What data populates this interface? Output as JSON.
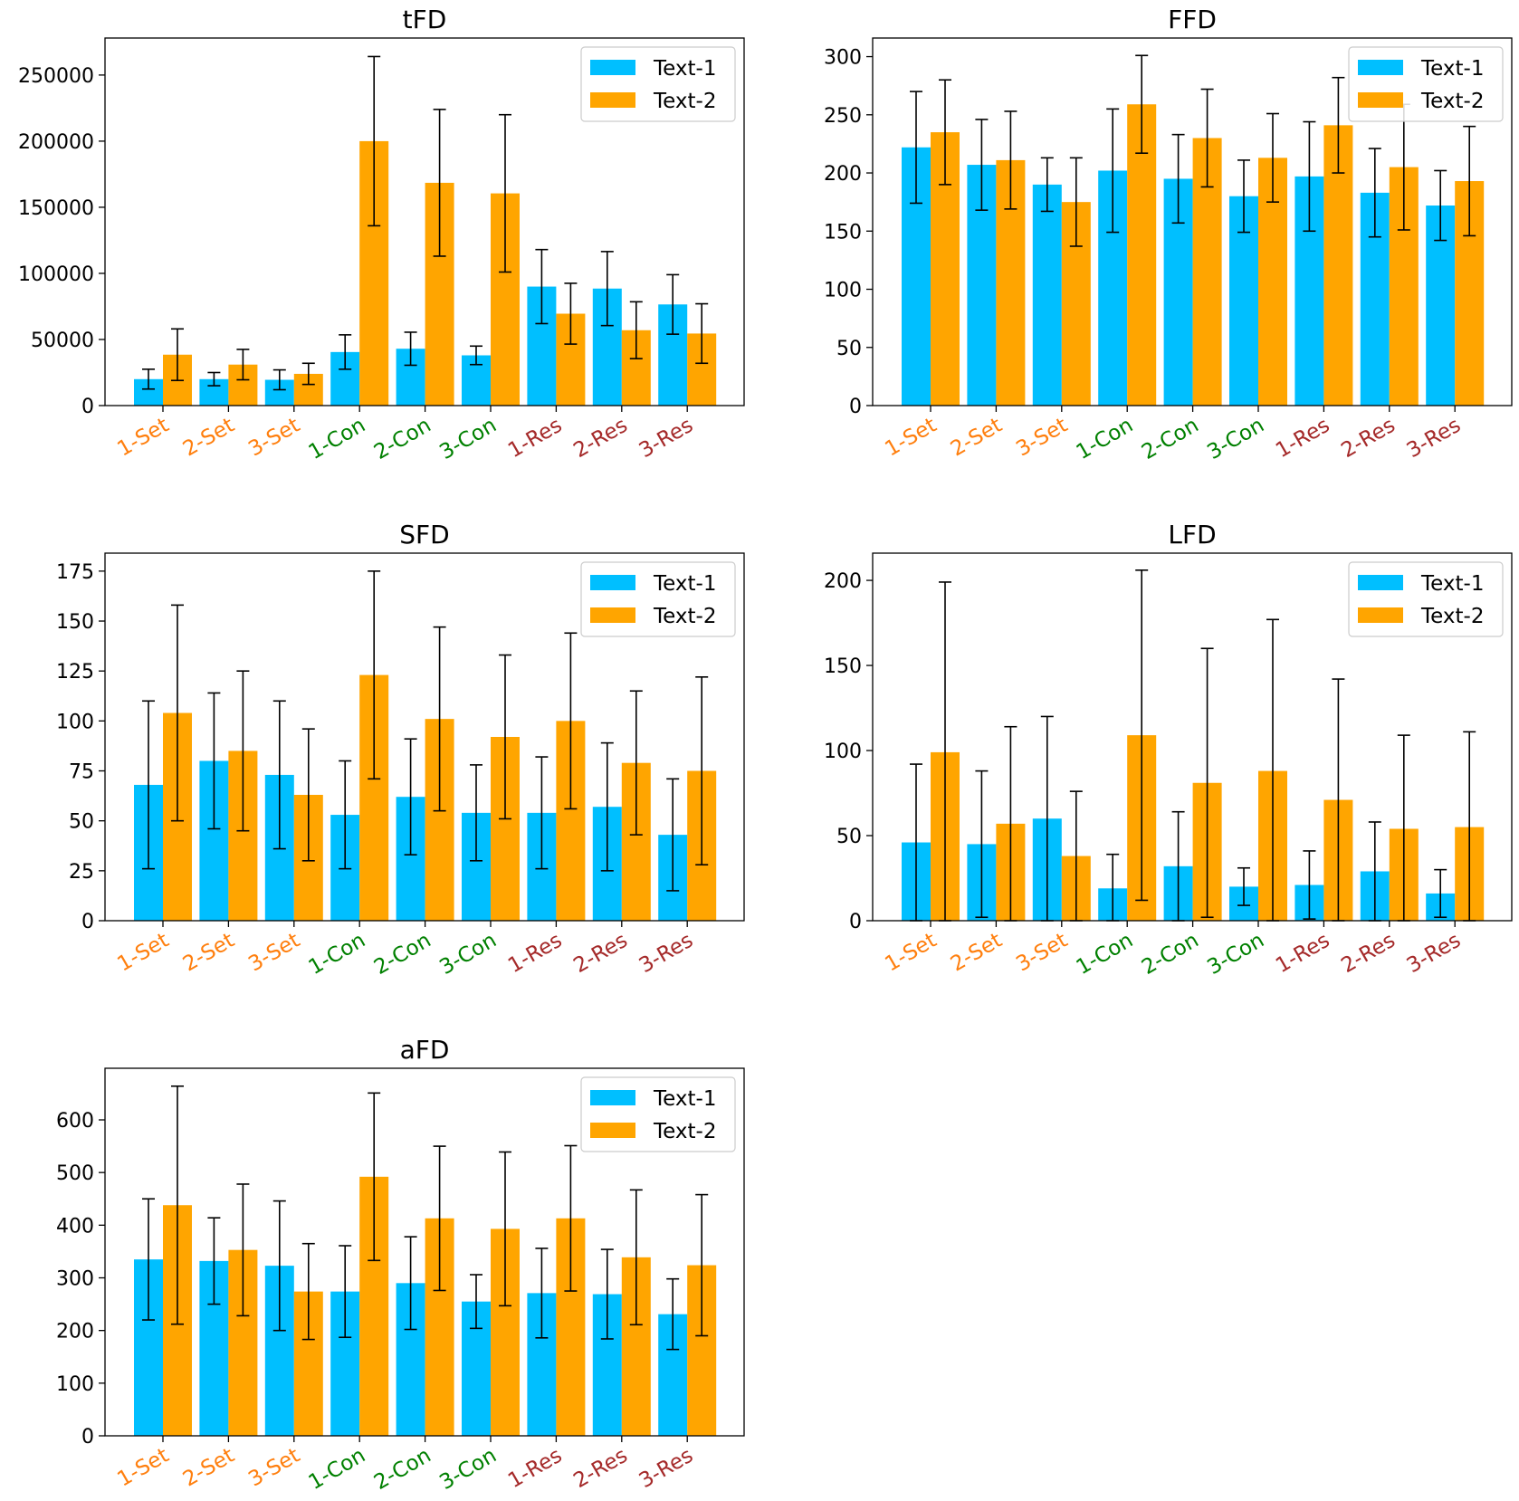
{
  "figure": {
    "series_colors": [
      "#00bfff",
      "#ffa500"
    ],
    "category_colors": {
      "Set": "#ff7f0e",
      "Con": "#008000",
      "Res": "#a52a2a"
    }
  },
  "chart_data": [
    {
      "type": "bar",
      "title": "tFD",
      "categories": [
        "1-Set",
        "2-Set",
        "3-Set",
        "1-Con",
        "2-Con",
        "3-Con",
        "1-Res",
        "2-Res",
        "3-Res"
      ],
      "category_groups": [
        "Set",
        "Set",
        "Set",
        "Con",
        "Con",
        "Con",
        "Res",
        "Res",
        "Res"
      ],
      "series": [
        {
          "name": "Text-1",
          "values": [
            20000,
            20000,
            19500,
            40500,
            43000,
            38000,
            90000,
            88500,
            76500
          ],
          "errors": [
            7500,
            5000,
            7500,
            13000,
            12500,
            7000,
            28000,
            28000,
            22500
          ]
        },
        {
          "name": "Text-2",
          "values": [
            38500,
            31000,
            24000,
            200000,
            168500,
            160500,
            69500,
            57000,
            54500
          ],
          "errors": [
            19500,
            11500,
            8000,
            64000,
            55500,
            59500,
            23000,
            21500,
            22500
          ]
        }
      ],
      "yticks": [
        0,
        50000,
        100000,
        150000,
        200000,
        250000
      ],
      "ytick_labels": [
        "0",
        "50000",
        "100000",
        "150000",
        "200000",
        "250000"
      ],
      "ylim": [
        0,
        278000
      ],
      "xlabel": "",
      "ylabel": "",
      "legend": {
        "position": "top-right",
        "labels": [
          "Text-1",
          "Text-2"
        ]
      }
    },
    {
      "type": "bar",
      "title": "FFD",
      "categories": [
        "1-Set",
        "2-Set",
        "3-Set",
        "1-Con",
        "2-Con",
        "3-Con",
        "1-Res",
        "2-Res",
        "3-Res"
      ],
      "category_groups": [
        "Set",
        "Set",
        "Set",
        "Con",
        "Con",
        "Con",
        "Res",
        "Res",
        "Res"
      ],
      "series": [
        {
          "name": "Text-1",
          "values": [
            222,
            207,
            190,
            202,
            195,
            180,
            197,
            183,
            172
          ],
          "errors": [
            48,
            39,
            23,
            53,
            38,
            31,
            47,
            38,
            30
          ]
        },
        {
          "name": "Text-2",
          "values": [
            235,
            211,
            175,
            259,
            230,
            213,
            241,
            205,
            193
          ],
          "errors": [
            45,
            42,
            38,
            42,
            42,
            38,
            41,
            54,
            47
          ]
        }
      ],
      "yticks": [
        0,
        50,
        100,
        150,
        200,
        250,
        300
      ],
      "ytick_labels": [
        "0",
        "50",
        "100",
        "150",
        "200",
        "250",
        "300"
      ],
      "ylim": [
        0,
        316
      ],
      "xlabel": "",
      "ylabel": "",
      "legend": {
        "position": "top-right",
        "labels": [
          "Text-1",
          "Text-2"
        ]
      }
    },
    {
      "type": "bar",
      "title": "SFD",
      "categories": [
        "1-Set",
        "2-Set",
        "3-Set",
        "1-Con",
        "2-Con",
        "3-Con",
        "1-Res",
        "2-Res",
        "3-Res"
      ],
      "category_groups": [
        "Set",
        "Set",
        "Set",
        "Con",
        "Con",
        "Con",
        "Res",
        "Res",
        "Res"
      ],
      "series": [
        {
          "name": "Text-1",
          "values": [
            68,
            80,
            73,
            53,
            62,
            54,
            54,
            57,
            43
          ],
          "errors": [
            42,
            34,
            37,
            27,
            29,
            24,
            28,
            32,
            28
          ]
        },
        {
          "name": "Text-2",
          "values": [
            104,
            85,
            63,
            123,
            101,
            92,
            100,
            79,
            75
          ],
          "errors": [
            54,
            40,
            33,
            52,
            46,
            41,
            44,
            36,
            47
          ]
        }
      ],
      "yticks": [
        0,
        25,
        50,
        75,
        100,
        125,
        150,
        175
      ],
      "ytick_labels": [
        "0",
        "25",
        "50",
        "75",
        "100",
        "125",
        "150",
        "175"
      ],
      "ylim": [
        0,
        184
      ],
      "xlabel": "",
      "ylabel": "",
      "legend": {
        "position": "top-right",
        "labels": [
          "Text-1",
          "Text-2"
        ]
      }
    },
    {
      "type": "bar",
      "title": "LFD",
      "categories": [
        "1-Set",
        "2-Set",
        "3-Set",
        "1-Con",
        "2-Con",
        "3-Con",
        "1-Res",
        "2-Res",
        "3-Res"
      ],
      "category_groups": [
        "Set",
        "Set",
        "Set",
        "Con",
        "Con",
        "Con",
        "Res",
        "Res",
        "Res"
      ],
      "series": [
        {
          "name": "Text-1",
          "values": [
            46,
            45,
            60,
            19,
            32,
            20,
            21,
            29,
            16
          ],
          "errors": [
            46,
            43,
            60,
            20,
            32,
            11,
            20,
            29,
            14
          ]
        },
        {
          "name": "Text-2",
          "values": [
            99,
            57,
            38,
            109,
            81,
            88,
            71,
            54,
            55
          ],
          "errors": [
            100,
            57,
            38,
            97,
            79,
            89,
            71,
            55,
            56
          ]
        }
      ],
      "yticks": [
        0,
        50,
        100,
        150,
        200
      ],
      "ytick_labels": [
        "0",
        "50",
        "100",
        "150",
        "200"
      ],
      "ylim": [
        0,
        216
      ],
      "xlabel": "",
      "ylabel": "",
      "legend": {
        "position": "top-right",
        "labels": [
          "Text-1",
          "Text-2"
        ]
      }
    },
    {
      "type": "bar",
      "title": "aFD",
      "categories": [
        "1-Set",
        "2-Set",
        "3-Set",
        "1-Con",
        "2-Con",
        "3-Con",
        "1-Res",
        "2-Res",
        "3-Res"
      ],
      "category_groups": [
        "Set",
        "Set",
        "Set",
        "Con",
        "Con",
        "Con",
        "Res",
        "Res",
        "Res"
      ],
      "series": [
        {
          "name": "Text-1",
          "values": [
            335,
            332,
            323,
            274,
            290,
            255,
            271,
            269,
            231
          ],
          "errors": [
            115,
            82,
            123,
            87,
            88,
            51,
            85,
            85,
            67
          ]
        },
        {
          "name": "Text-2",
          "values": [
            438,
            353,
            274,
            492,
            413,
            393,
            413,
            339,
            324
          ],
          "errors": [
            226,
            125,
            91,
            159,
            137,
            146,
            138,
            128,
            134
          ]
        }
      ],
      "yticks": [
        0,
        100,
        200,
        300,
        400,
        500,
        600
      ],
      "ytick_labels": [
        "0",
        "100",
        "200",
        "300",
        "400",
        "500",
        "600"
      ],
      "ylim": [
        0,
        698
      ],
      "xlabel": "",
      "ylabel": "",
      "legend": {
        "position": "top-right",
        "labels": [
          "Text-1",
          "Text-2"
        ]
      }
    }
  ]
}
